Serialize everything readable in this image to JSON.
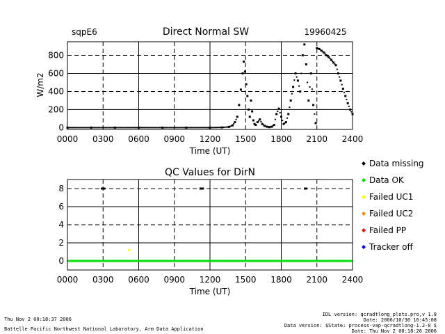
{
  "chart_data": [
    {
      "type": "scatter",
      "site": "sqpE6",
      "title": "Direct Normal SW",
      "date": "19960425",
      "xlabel": "Time (UT)",
      "ylabel": "W/m2",
      "x_ticks": [
        "0000",
        "0300",
        "0600",
        "0900",
        "1200",
        "1500",
        "1800",
        "2100",
        "2400"
      ],
      "y_ticks": [
        "0",
        "200",
        "400",
        "600",
        "800"
      ],
      "xlim": [
        0,
        24
      ],
      "ylim": [
        -20,
        950
      ],
      "grid": true,
      "series": [
        {
          "color": "#000000",
          "x": [
            0,
            2,
            4,
            6,
            8,
            10,
            12,
            13,
            13.6,
            13.9,
            14.1,
            14.3,
            14.45,
            14.6,
            14.75,
            14.85,
            14.95,
            15.05,
            15.15,
            15.25,
            15.35,
            15.45,
            15.55,
            15.65,
            15.75,
            15.85,
            16.0,
            16.2,
            16.4,
            16.6,
            16.8,
            17.0,
            17.2,
            17.4,
            17.6,
            17.8,
            18.0,
            18.2,
            18.4,
            18.6,
            18.8,
            19.0,
            19.2,
            19.4,
            19.6,
            19.8,
            19.95,
            20.1,
            20.3,
            20.5,
            20.7,
            20.9,
            21.0,
            21.2,
            21.4,
            21.6,
            21.8,
            22.0,
            22.2,
            22.4,
            22.6,
            22.8,
            23.0,
            23.2,
            23.4,
            23.6,
            23.8,
            24.0
          ],
          "y": [
            0,
            0,
            0,
            0,
            0,
            0,
            0,
            2,
            8,
            25,
            60,
            120,
            250,
            420,
            600,
            730,
            620,
            480,
            350,
            200,
            120,
            300,
            180,
            80,
            40,
            30,
            60,
            90,
            40,
            20,
            10,
            5,
            10,
            30,
            150,
            210,
            120,
            40,
            60,
            150,
            300,
            450,
            600,
            520,
            400,
            800,
            920,
            700,
            300,
            600,
            250,
            50,
            880,
            870,
            850,
            830,
            800,
            780,
            750,
            720,
            690,
            600,
            520,
            430,
            350,
            270,
            200,
            150
          ]
        }
      ]
    },
    {
      "type": "scatter",
      "title": "QC Values for DirN",
      "xlabel": "Time (UT)",
      "x_ticks": [
        "0000",
        "0300",
        "0600",
        "0900",
        "1200",
        "1500",
        "1800",
        "2100",
        "2400"
      ],
      "y_ticks": [
        "0",
        "2",
        "4",
        "6",
        "8"
      ],
      "xlim": [
        0,
        24
      ],
      "ylim": [
        -1,
        9
      ],
      "grid": true,
      "series": [
        {
          "name": "Data OK",
          "color": "#00dd00",
          "x_start": 0,
          "x_end": 24,
          "y": 0
        },
        {
          "name": "Data missing",
          "color": "#000000",
          "x": [
            2.9,
            3.0,
            3.1,
            11.2,
            11.3,
            11.4,
            20.0,
            20.1
          ],
          "y": [
            8,
            8,
            8,
            8,
            8,
            8,
            8,
            8
          ]
        },
        {
          "name": "Failed UC1",
          "color": "#ffff00",
          "x": [
            5.2
          ],
          "y": [
            1.2
          ]
        }
      ]
    }
  ],
  "legend": [
    {
      "label": "Data missing",
      "color": "#000000"
    },
    {
      "label": "Data OK",
      "color": "#00dd00"
    },
    {
      "label": "Failed UC1",
      "color": "#ffff00"
    },
    {
      "label": "Failed UC2",
      "color": "#ff8800"
    },
    {
      "label": "Failed PP",
      "color": "#ff0000"
    },
    {
      "label": "Tracker off",
      "color": "#0000ff"
    }
  ],
  "footer": {
    "left_line1": "Thu Nov  2 00:18:37 2006",
    "left_line2": "Battelle Pacific Northwest National Laboratory, Arm Data Application",
    "right_line1": "IDL version: qcradtlong_plots.pro,v 1.8",
    "right_line2": "Date: 2006/10/30 16:45:08",
    "right_line3": "Data version: $State: process-vap-qcradtlong-1.2-0 $",
    "right_line4": "Date: Thu Nov  2 00:18:26 2006"
  }
}
